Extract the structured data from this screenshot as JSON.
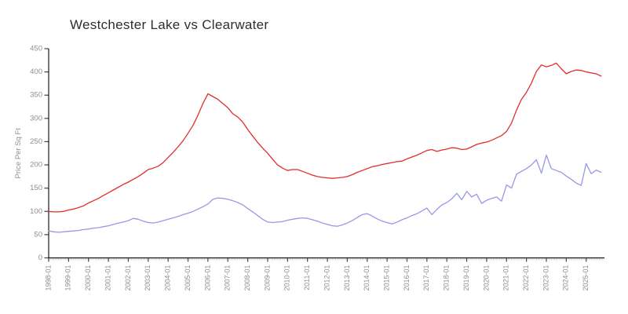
{
  "title": "Westchester Lake vs Clearwater",
  "chart_data": {
    "type": "line",
    "title": "Westchester Lake vs Clearwater",
    "xlabel": "",
    "ylabel": "Price Per Sq Ft",
    "ylim": [
      0,
      450
    ],
    "y_ticks": [
      0,
      50,
      100,
      150,
      200,
      250,
      300,
      350,
      400,
      450
    ],
    "x_tick_labels": [
      "1998-01",
      "1999-01",
      "2000-01",
      "2001-01",
      "2002-01",
      "2003-01",
      "2004-01",
      "2005-01",
      "2006-01",
      "2007-01",
      "2008-01",
      "2009-01",
      "2010-01",
      "2011-01",
      "2012-01",
      "2013-01",
      "2014-01",
      "2015-01",
      "2016-01",
      "2017-01",
      "2018-01",
      "2019-01",
      "2020-01",
      "2021-01",
      "2022-01",
      "2023-01",
      "2024-01",
      "2025-01"
    ],
    "x_start": "1998-01",
    "interval_months": 3,
    "grid": false,
    "legend": "none",
    "axis_color": "#1a1a1a",
    "major_tick_color": "#444444",
    "minor_tick_color": "#c9c9c9",
    "tick_label_color": "#8f8f8f",
    "series": [
      {
        "name": "Westchester Lake",
        "color": "#e12e2e",
        "values": [
          100,
          99,
          99,
          100,
          103,
          105,
          108,
          112,
          118,
          123,
          128,
          134,
          140,
          146,
          152,
          158,
          163,
          169,
          175,
          182,
          190,
          193,
          197,
          205,
          216,
          227,
          239,
          252,
          268,
          285,
          307,
          332,
          353,
          347,
          341,
          332,
          323,
          310,
          303,
          292,
          276,
          262,
          248,
          236,
          225,
          212,
          200,
          193,
          188,
          190,
          190,
          186,
          182,
          178,
          175,
          173,
          172,
          171,
          172,
          173,
          175,
          179,
          184,
          188,
          192,
          196,
          198,
          201,
          203,
          205,
          207,
          208,
          213,
          217,
          221,
          226,
          231,
          233,
          229,
          232,
          234,
          237,
          236,
          233,
          234,
          239,
          244,
          247,
          249,
          253,
          258,
          263,
          272,
          290,
          318,
          341,
          356,
          376,
          401,
          415,
          411,
          414,
          419,
          407,
          396,
          401,
          404,
          403,
          400,
          398,
          396,
          391
        ]
      },
      {
        "name": "Clearwater",
        "color": "#9898e8",
        "values": [
          58,
          56,
          55,
          56,
          57,
          58,
          59,
          61,
          62,
          64,
          65,
          67,
          69,
          72,
          75,
          77,
          80,
          85,
          83,
          79,
          76,
          75,
          77,
          80,
          83,
          86,
          89,
          93,
          96,
          100,
          105,
          110,
          116,
          126,
          129,
          128,
          126,
          123,
          119,
          114,
          106,
          99,
          91,
          83,
          77,
          76,
          77,
          78,
          81,
          83,
          85,
          86,
          85,
          82,
          79,
          75,
          72,
          69,
          68,
          71,
          75,
          80,
          87,
          93,
          95,
          90,
          84,
          79,
          76,
          73,
          77,
          82,
          86,
          91,
          95,
          101,
          107,
          93,
          104,
          114,
          119,
          127,
          139,
          125,
          143,
          131,
          137,
          117,
          124,
          128,
          131,
          122,
          157,
          150,
          180,
          186,
          192,
          200,
          211,
          182,
          221,
          192,
          188,
          184,
          176,
          169,
          161,
          156,
          203,
          181,
          189,
          184
        ]
      }
    ]
  }
}
